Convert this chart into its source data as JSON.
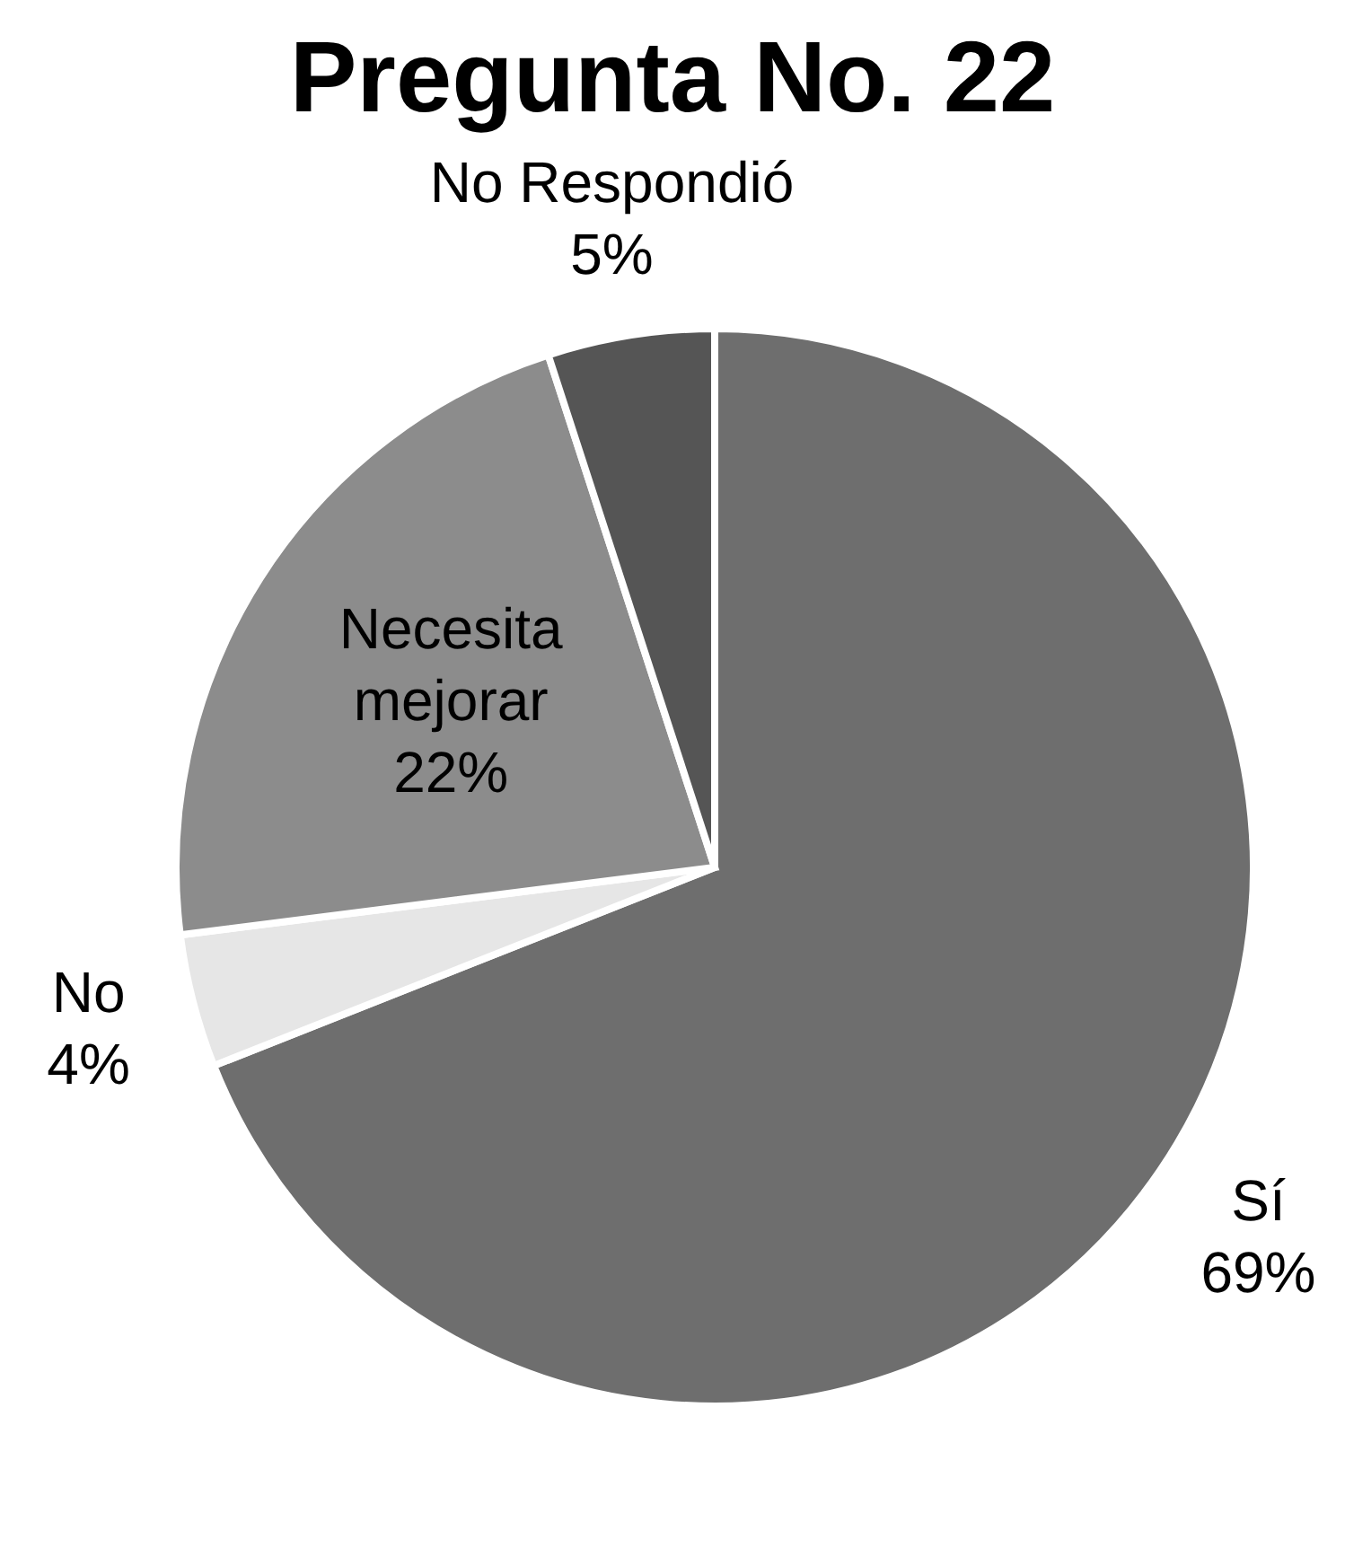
{
  "chart_data": {
    "type": "pie",
    "title": "Pregunta No. 22",
    "categories": [
      "Sí",
      "No",
      "Necesita mejorar",
      "No Respondió"
    ],
    "values": [
      69,
      4,
      22,
      5
    ],
    "value_labels": [
      "69%",
      "4%",
      "22%",
      "5%"
    ],
    "colors": [
      "#6e6e6e",
      "#e6e6e6",
      "#8c8c8c",
      "#555555"
    ],
    "legend": false
  }
}
